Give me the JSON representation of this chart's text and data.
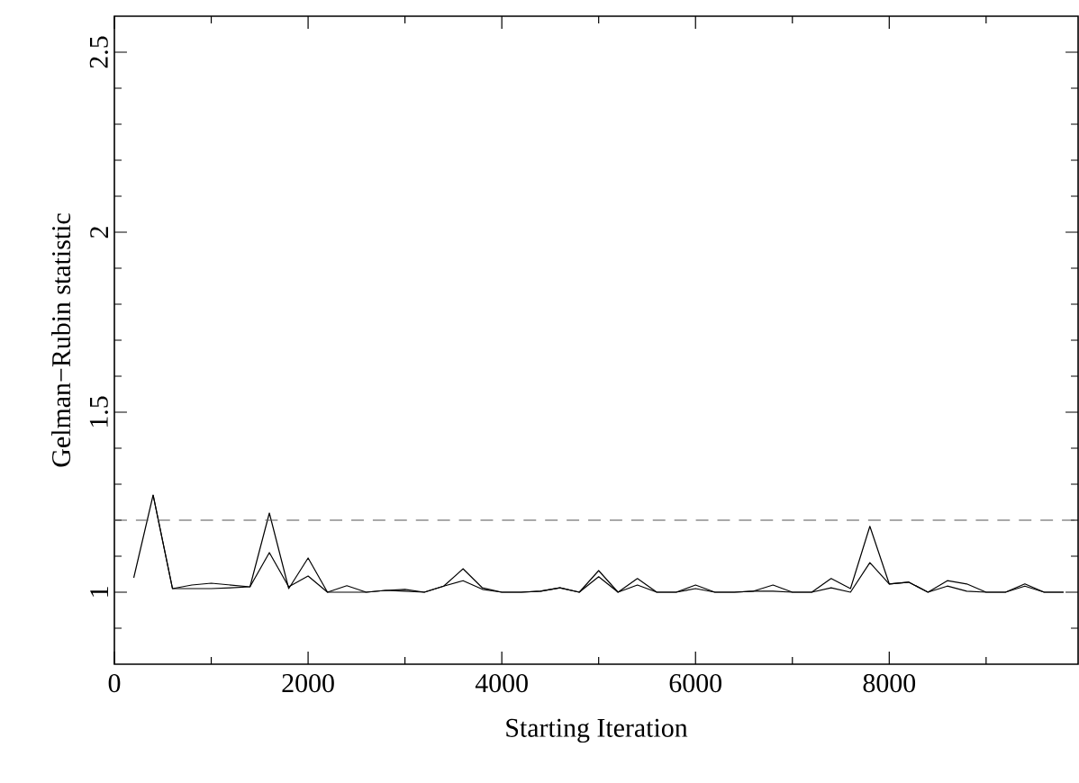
{
  "chart_data": {
    "type": "line",
    "xlabel": "Starting Iteration",
    "ylabel": "Gelman−Rubin statistic",
    "x": [
      200,
      400,
      600,
      800,
      1000,
      1200,
      1400,
      1600,
      1800,
      2000,
      2200,
      2400,
      2600,
      2800,
      3000,
      3200,
      3400,
      3600,
      3800,
      4000,
      4200,
      4400,
      4600,
      4800,
      5000,
      5200,
      5400,
      5600,
      5800,
      6000,
      6200,
      6400,
      6600,
      6800,
      7000,
      7200,
      7400,
      7600,
      7800,
      8000,
      8200,
      8400,
      8600,
      8800,
      9000,
      9200,
      9400,
      9600,
      9800
    ],
    "series": [
      {
        "color": "#000000",
        "values": [
          1.04,
          1.27,
          1.01,
          1.02,
          1.025,
          1.02,
          1.015,
          1.22,
          1.01,
          1.095,
          1.0,
          1.018,
          1.0,
          1.005,
          1.008,
          1.0,
          1.017,
          1.065,
          1.012,
          1.0,
          1.0,
          1.003,
          1.012,
          1.0,
          1.06,
          1.0,
          1.038,
          1.0,
          1.0,
          1.02,
          1.0,
          1.0,
          1.003,
          1.02,
          1.0,
          1.0,
          1.038,
          1.01,
          1.183,
          1.023,
          1.028,
          1.0,
          1.032,
          1.023,
          1.0,
          1.0,
          1.023,
          1.0,
          1.0
        ]
      },
      {
        "color": "#000000",
        "values": [
          null,
          1.27,
          1.01,
          1.01,
          1.01,
          1.012,
          1.015,
          1.11,
          1.015,
          1.045,
          1.0,
          1.0,
          1.0,
          1.005,
          1.003,
          1.0,
          1.017,
          1.032,
          1.008,
          1.0,
          1.0,
          1.003,
          1.012,
          1.0,
          1.043,
          1.0,
          1.02,
          1.0,
          1.0,
          1.01,
          1.0,
          1.0,
          1.003,
          1.003,
          1.0,
          1.0,
          1.012,
          1.0,
          1.082,
          1.023,
          1.028,
          1.0,
          1.017,
          1.003,
          1.0,
          1.0,
          1.017,
          1.0,
          1.0
        ]
      }
    ],
    "xlim": [
      0,
      9950
    ],
    "ylim": [
      0.8,
      2.6
    ],
    "xticks": [
      0,
      {
        "value": 1000,
        "label": null
      },
      2000,
      {
        "value": 3000,
        "label": null
      },
      4000,
      {
        "value": 5000,
        "label": null
      },
      6000,
      {
        "value": 7000,
        "label": null
      },
      8000,
      {
        "value": 9000,
        "label": null
      }
    ],
    "yticks": [
      {
        "value": 0.9,
        "label": null
      },
      1,
      {
        "value": 1.1,
        "label": null
      },
      {
        "value": 1.2,
        "label": null
      },
      {
        "value": 1.3,
        "label": null
      },
      {
        "value": 1.4,
        "label": null
      },
      1.5,
      {
        "value": 1.6,
        "label": null
      },
      {
        "value": 1.7,
        "label": null
      },
      {
        "value": 1.8,
        "label": null
      },
      {
        "value": 1.9,
        "label": null
      },
      2,
      {
        "value": 2.1,
        "label": null
      },
      {
        "value": 2.2,
        "label": null
      },
      {
        "value": 2.3,
        "label": null
      },
      {
        "value": 2.4,
        "label": null
      },
      2.5
    ],
    "ref_lines": [
      {
        "axis": "y",
        "value": 1.2,
        "color": "#555555",
        "line_style": "dashed"
      }
    ],
    "grid": false,
    "marker": "none",
    "line_style": "solid"
  }
}
